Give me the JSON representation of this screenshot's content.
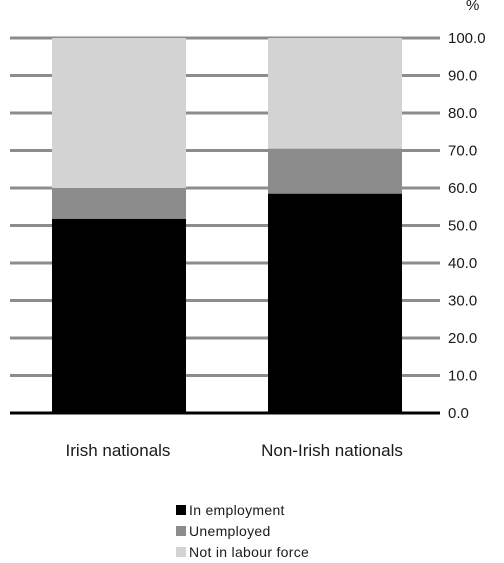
{
  "chart_data": {
    "type": "bar",
    "stacked": true,
    "categories": [
      "Irish nationals",
      "Non-Irish nationals"
    ],
    "series": [
      {
        "name": "In employment",
        "values": [
          51.8,
          58.5
        ],
        "color": "#000000"
      },
      {
        "name": "Unemployed",
        "values": [
          8.2,
          12.0
        ],
        "color": "#8c8c8c"
      },
      {
        "name": "Not in labour force",
        "values": [
          40.0,
          29.5
        ],
        "color": "#d3d3d3"
      }
    ],
    "ylim": [
      0,
      100
    ],
    "yticks": [
      "0.0",
      "10.0",
      "20.0",
      "30.0",
      "40.0",
      "50.0",
      "60.0",
      "70.0",
      "80.0",
      "90.0",
      "100.0"
    ],
    "unit_label": "%",
    "grid": true,
    "legend_position": "bottom"
  }
}
